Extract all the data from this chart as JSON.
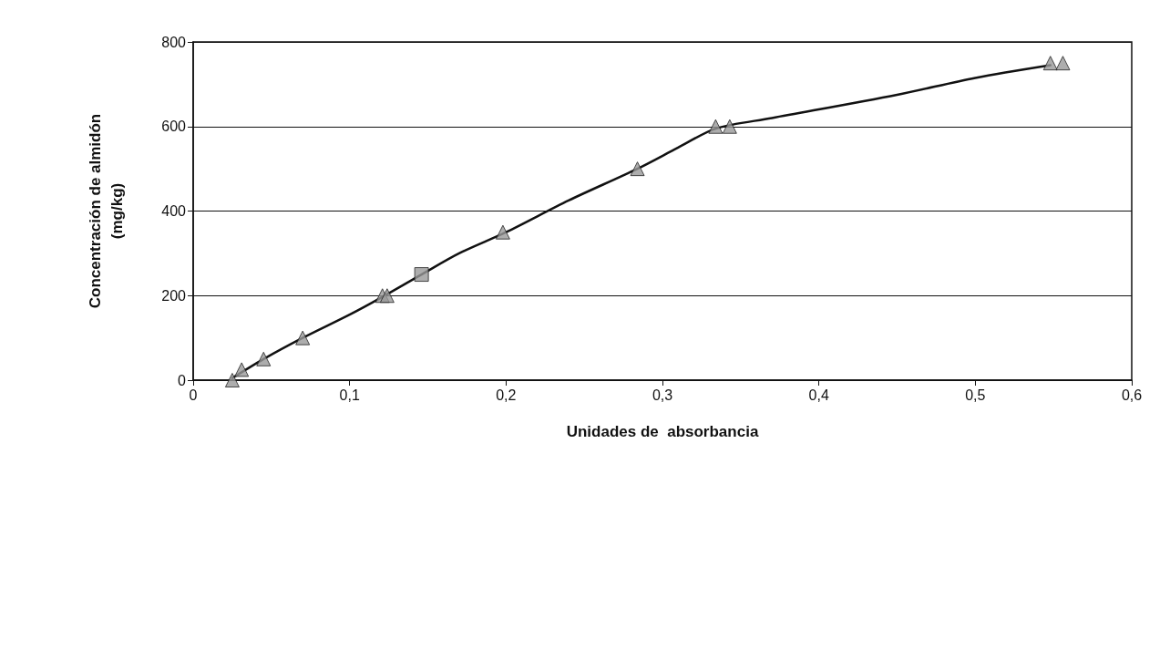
{
  "chart_data": {
    "type": "scatter",
    "xlabel": "Unidades de  absorbancia",
    "ylabel": "Concentración de almidón\n(mg/kg)",
    "xlim": [
      0,
      0.6
    ],
    "xticks": [
      {
        "value": 0,
        "label": "0"
      },
      {
        "value": 0.1,
        "label": "0,1"
      },
      {
        "value": 0.2,
        "label": "0,2"
      },
      {
        "value": 0.3,
        "label": "0,3"
      },
      {
        "value": 0.4,
        "label": "0,4"
      },
      {
        "value": 0.5,
        "label": "0,5"
      },
      {
        "value": 0.6,
        "label": "0,6"
      }
    ],
    "ylim": [
      0,
      800
    ],
    "yticks": [
      0,
      200,
      400,
      600,
      800
    ],
    "grid": "y",
    "series": [
      {
        "type": "line",
        "marker": "none",
        "color": "#111111",
        "x": [
          0.025,
          0.045,
          0.07,
          0.1,
          0.12,
          0.146,
          0.17,
          0.2,
          0.24,
          0.284,
          0.31,
          0.334,
          0.37,
          0.45,
          0.5,
          0.548
        ],
        "values": [
          5,
          50,
          100,
          155,
          195,
          250,
          300,
          350,
          425,
          500,
          550,
          595,
          620,
          675,
          715,
          745
        ]
      },
      {
        "type": "scatter",
        "marker": "triangle",
        "color": "#999999",
        "x": [
          0.025,
          0.031,
          0.045,
          0.07,
          0.121,
          0.124,
          0.198,
          0.284,
          0.334,
          0.343,
          0.548,
          0.556
        ],
        "values": [
          0,
          25,
          50,
          100,
          200,
          200,
          350,
          500,
          600,
          600,
          750,
          750
        ]
      },
      {
        "type": "scatter",
        "marker": "square",
        "color": "#999999",
        "x": [
          0.146
        ],
        "values": [
          250
        ]
      }
    ]
  }
}
